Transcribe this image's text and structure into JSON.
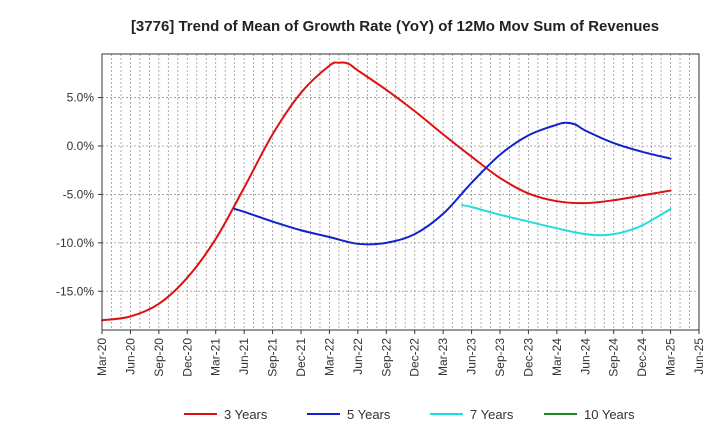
{
  "chart_data": {
    "type": "line",
    "title": "[3776]  Trend of Mean of Growth Rate (YoY) of 12Mo Mov Sum of Revenues",
    "xlabel": "",
    "ylabel": "",
    "ylim": [
      -19,
      9.5
    ],
    "y_ticks": [
      5.0,
      0.0,
      -5.0,
      -10.0,
      -15.0
    ],
    "y_tick_labels": [
      "5.0%",
      "0.0%",
      "-5.0%",
      "-10.0%",
      "-15.0%"
    ],
    "x_start": "2020-03",
    "x_end": "2025-06",
    "x_tick_labels": [
      "Mar-20",
      "Jun-20",
      "Sep-20",
      "Dec-20",
      "Mar-21",
      "Jun-21",
      "Sep-21",
      "Dec-21",
      "Mar-22",
      "Jun-22",
      "Sep-22",
      "Dec-22",
      "Mar-23",
      "Jun-23",
      "Sep-23",
      "Dec-23",
      "Mar-24",
      "Jun-24",
      "Sep-24",
      "Dec-24",
      "Mar-25",
      "Jun-25"
    ],
    "grid": true,
    "legend_position": "bottom",
    "series": [
      {
        "name": "3 Years",
        "color": "#dd1111",
        "points": [
          [
            "2020-03",
            -18.0
          ],
          [
            "2020-06",
            -17.6
          ],
          [
            "2020-09",
            -16.3
          ],
          [
            "2020-12",
            -13.6
          ],
          [
            "2021-03",
            -9.6
          ],
          [
            "2021-06",
            -4.3
          ],
          [
            "2021-09",
            1.2
          ],
          [
            "2021-12",
            5.5
          ],
          [
            "2022-03",
            8.3
          ],
          [
            "2022-04",
            8.6
          ],
          [
            "2022-05",
            8.5
          ],
          [
            "2022-06",
            7.8
          ],
          [
            "2022-09",
            5.8
          ],
          [
            "2022-12",
            3.6
          ],
          [
            "2023-03",
            1.2
          ],
          [
            "2023-06",
            -1.1
          ],
          [
            "2023-09",
            -3.3
          ],
          [
            "2023-12",
            -4.9
          ],
          [
            "2024-03",
            -5.7
          ],
          [
            "2024-06",
            -5.9
          ],
          [
            "2024-09",
            -5.6
          ],
          [
            "2024-12",
            -5.1
          ],
          [
            "2025-03",
            -4.6
          ]
        ]
      },
      {
        "name": "5 Years",
        "color": "#1122cc",
        "points": [
          [
            "2021-05",
            -6.5
          ],
          [
            "2021-06",
            -6.8
          ],
          [
            "2021-09",
            -7.8
          ],
          [
            "2021-12",
            -8.7
          ],
          [
            "2022-03",
            -9.4
          ],
          [
            "2022-06",
            -10.1
          ],
          [
            "2022-09",
            -10.0
          ],
          [
            "2022-12",
            -9.1
          ],
          [
            "2023-03",
            -7.0
          ],
          [
            "2023-06",
            -3.8
          ],
          [
            "2023-09",
            -0.9
          ],
          [
            "2023-12",
            1.1
          ],
          [
            "2024-03",
            2.2
          ],
          [
            "2024-04",
            2.4
          ],
          [
            "2024-05",
            2.2
          ],
          [
            "2024-06",
            1.6
          ],
          [
            "2024-09",
            0.3
          ],
          [
            "2024-12",
            -0.6
          ],
          [
            "2025-03",
            -1.3
          ]
        ]
      },
      {
        "name": "7 Years",
        "color": "#22dddd",
        "points": [
          [
            "2023-05",
            -6.1
          ],
          [
            "2023-06",
            -6.3
          ],
          [
            "2023-09",
            -7.1
          ],
          [
            "2023-12",
            -7.8
          ],
          [
            "2024-03",
            -8.5
          ],
          [
            "2024-06",
            -9.1
          ],
          [
            "2024-08",
            -9.2
          ],
          [
            "2024-10",
            -8.9
          ],
          [
            "2024-12",
            -8.2
          ],
          [
            "2025-03",
            -6.5
          ]
        ]
      },
      {
        "name": "10 Years",
        "color": "#228822",
        "points": []
      }
    ]
  }
}
